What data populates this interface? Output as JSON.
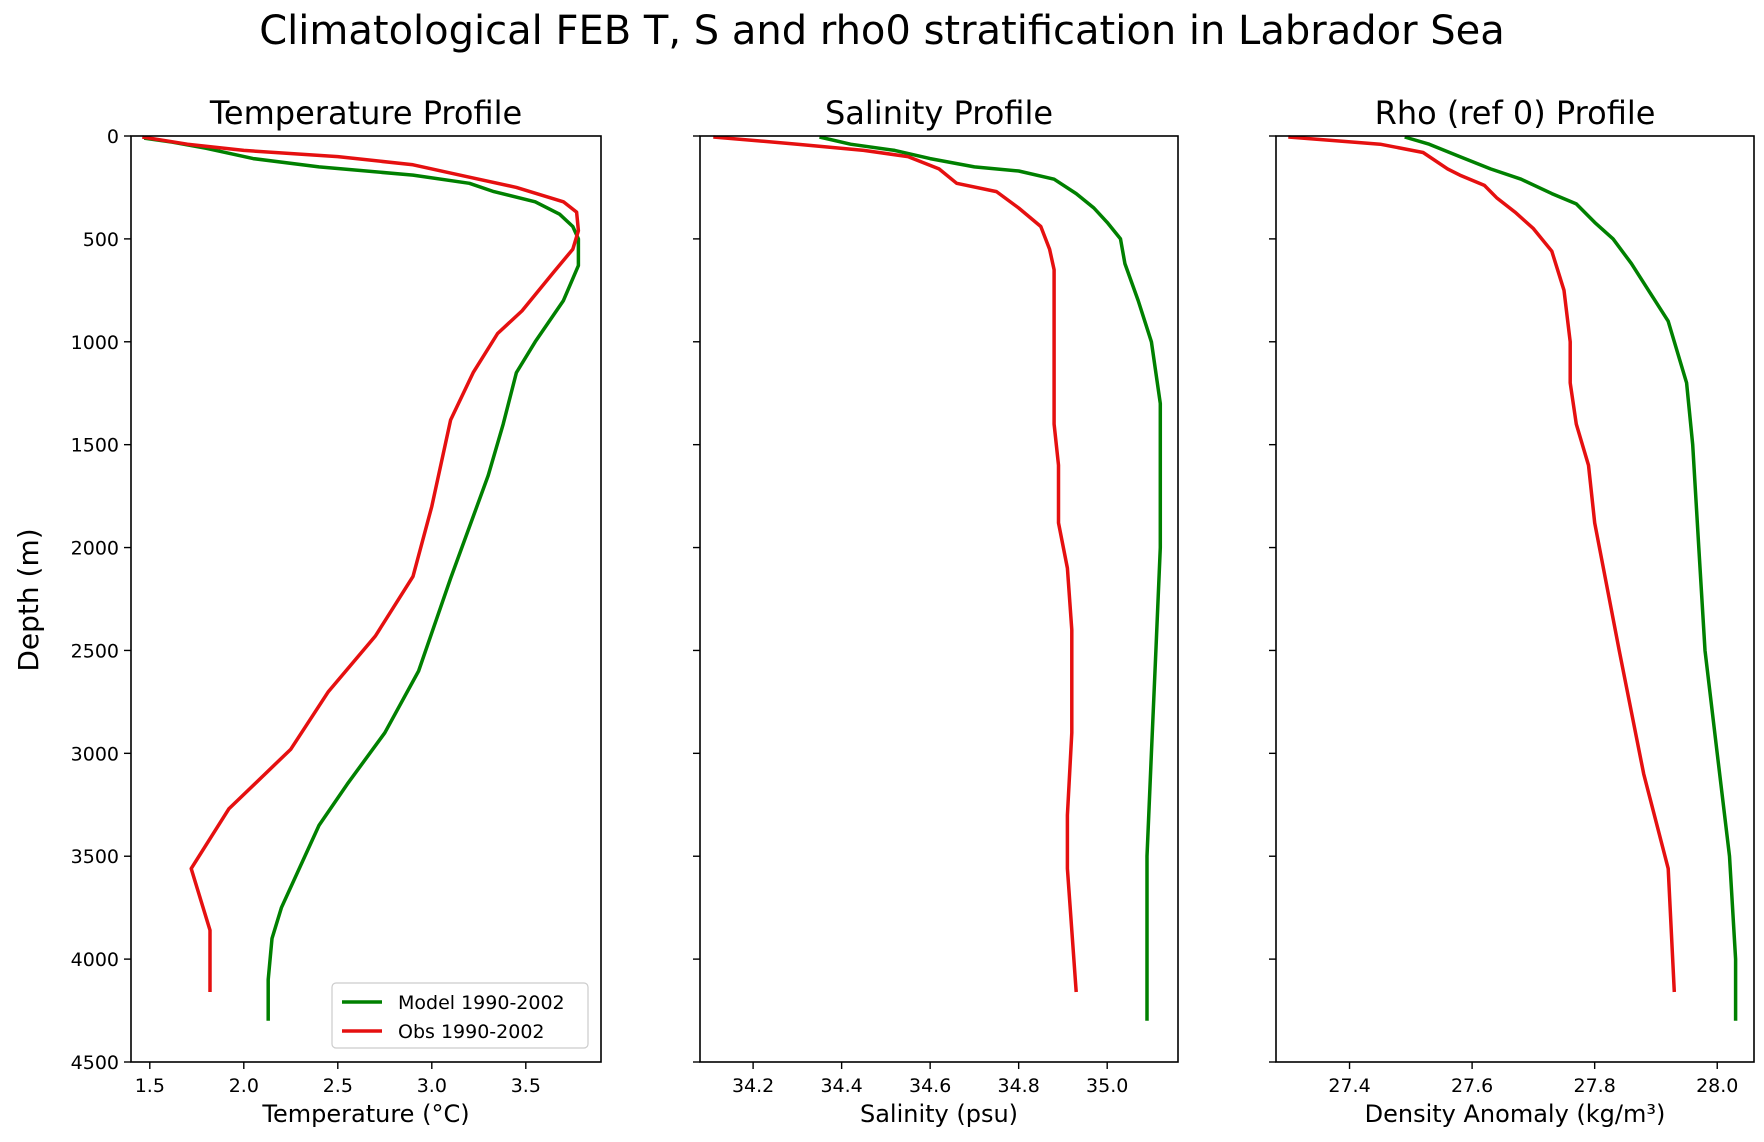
{
  "figure": {
    "title": "Climatological FEB T, S and rho0 stratification in Labrador Sea",
    "ylabel": "Depth (m)"
  },
  "colors": {
    "model": "#008000",
    "obs": "#e51010"
  },
  "chart_data": [
    {
      "type": "line",
      "title": "Temperature Profile",
      "xlabel": "Temperature (°C)",
      "ylabel": "Depth (m)",
      "xlim": [
        1.4,
        3.9
      ],
      "ylim": [
        4500,
        0
      ],
      "y_inverted": true,
      "xticks": [
        1.5,
        2.0,
        2.5,
        3.0,
        3.5
      ],
      "xtick_labels": [
        "1.5",
        "2.0",
        "2.5",
        "3.0",
        "3.5"
      ],
      "yticks": [
        0,
        500,
        1000,
        1500,
        2000,
        2500,
        3000,
        3500,
        4000,
        4500
      ],
      "ytick_labels": [
        "0",
        "500",
        "1000",
        "1500",
        "2000",
        "2500",
        "3000",
        "3500",
        "4000",
        "4500"
      ],
      "legend": {
        "placement": "lower-right",
        "entries": [
          "Model 1990-2002",
          "Obs 1990-2002"
        ]
      },
      "series": [
        {
          "name": "Model 1990-2002",
          "color": "model",
          "x": [
            1.47,
            1.62,
            1.8,
            2.05,
            2.4,
            2.9,
            3.2,
            3.33,
            3.55,
            3.68,
            3.75,
            3.78,
            3.78,
            3.7,
            3.55,
            3.45,
            3.38,
            3.3,
            3.1,
            2.93,
            2.75,
            2.55,
            2.4,
            2.3,
            2.2,
            2.15,
            2.13,
            2.13
          ],
          "y": [
            10,
            30,
            60,
            110,
            150,
            190,
            230,
            270,
            320,
            380,
            440,
            500,
            630,
            800,
            1000,
            1150,
            1400,
            1650,
            2150,
            2600,
            2900,
            3150,
            3350,
            3550,
            3750,
            3900,
            4100,
            4300
          ]
        },
        {
          "name": "Obs 1990-2002",
          "color": "obs",
          "x": [
            1.46,
            1.7,
            2.0,
            2.5,
            2.9,
            3.2,
            3.45,
            3.7,
            3.77,
            3.78,
            3.75,
            3.65,
            3.48,
            3.35,
            3.22,
            3.1,
            3.0,
            2.9,
            2.7,
            2.45,
            2.25,
            1.92,
            1.72,
            1.82,
            1.82
          ],
          "y": [
            5,
            40,
            70,
            100,
            140,
            200,
            250,
            320,
            370,
            460,
            550,
            660,
            850,
            960,
            1150,
            1380,
            1800,
            2140,
            2430,
            2700,
            2980,
            3270,
            3560,
            3860,
            4160
          ]
        }
      ]
    },
    {
      "type": "line",
      "title": "Salinity Profile",
      "xlabel": "Salinity (psu)",
      "ylabel": "",
      "xlim": [
        34.08,
        35.16
      ],
      "ylim": [
        4500,
        0
      ],
      "y_inverted": true,
      "xticks": [
        34.2,
        34.4,
        34.6,
        34.8,
        35.0
      ],
      "xtick_labels": [
        "34.2",
        "34.4",
        "34.6",
        "34.8",
        "35.0"
      ],
      "yticks": [
        0,
        500,
        1000,
        1500,
        2000,
        2500,
        3000,
        3500,
        4000,
        4500
      ],
      "ytick_labels": [],
      "series": [
        {
          "name": "Model 1990-2002",
          "color": "model",
          "x": [
            34.35,
            34.42,
            34.52,
            34.6,
            34.7,
            34.8,
            34.88,
            34.93,
            34.97,
            35.0,
            35.03,
            35.04,
            35.07,
            35.1,
            35.12,
            35.12,
            35.12,
            35.11,
            35.1,
            35.09,
            35.09
          ],
          "y": [
            5,
            40,
            70,
            110,
            150,
            170,
            210,
            280,
            350,
            420,
            500,
            620,
            800,
            1000,
            1300,
            1600,
            2000,
            2500,
            3000,
            3500,
            4300
          ]
        },
        {
          "name": "Obs 1990-2002",
          "color": "obs",
          "x": [
            34.11,
            34.3,
            34.45,
            34.55,
            34.62,
            34.66,
            34.75,
            34.8,
            34.85,
            34.87,
            34.88,
            34.88,
            34.88,
            34.89,
            34.89,
            34.91,
            34.92,
            34.92,
            34.91,
            34.91,
            34.93
          ],
          "y": [
            5,
            40,
            70,
            100,
            160,
            230,
            270,
            350,
            440,
            550,
            650,
            900,
            1400,
            1600,
            1880,
            2100,
            2400,
            2900,
            3300,
            3560,
            4160
          ]
        }
      ]
    },
    {
      "type": "line",
      "title": "Rho (ref 0) Profile",
      "xlabel": "Density Anomaly (kg/m³)",
      "ylabel": "",
      "xlim": [
        27.28,
        28.06
      ],
      "ylim": [
        4500,
        0
      ],
      "y_inverted": true,
      "xticks": [
        27.4,
        27.6,
        27.8,
        28.0
      ],
      "xtick_labels": [
        "27.4",
        "27.6",
        "27.8",
        "28.0"
      ],
      "yticks": [
        0,
        500,
        1000,
        1500,
        2000,
        2500,
        3000,
        3500,
        4000,
        4500
      ],
      "ytick_labels": [],
      "series": [
        {
          "name": "Model 1990-2002",
          "color": "model",
          "x": [
            27.49,
            27.53,
            27.58,
            27.63,
            27.68,
            27.73,
            27.77,
            27.8,
            27.83,
            27.86,
            27.92,
            27.95,
            27.96,
            27.97,
            27.98,
            28.0,
            28.02,
            28.03,
            28.03
          ],
          "y": [
            5,
            40,
            100,
            160,
            210,
            280,
            330,
            420,
            500,
            620,
            900,
            1200,
            1500,
            2000,
            2500,
            3000,
            3500,
            4000,
            4300
          ]
        },
        {
          "name": "Obs 1990-2002",
          "color": "obs",
          "x": [
            27.3,
            27.45,
            27.52,
            27.56,
            27.58,
            27.62,
            27.64,
            27.67,
            27.7,
            27.73,
            27.75,
            27.76,
            27.76,
            27.77,
            27.79,
            27.8,
            27.84,
            27.88,
            27.92,
            27.93
          ],
          "y": [
            5,
            40,
            80,
            160,
            190,
            240,
            300,
            370,
            450,
            560,
            750,
            1000,
            1200,
            1400,
            1600,
            1880,
            2500,
            3100,
            3560,
            4160
          ]
        }
      ]
    }
  ]
}
